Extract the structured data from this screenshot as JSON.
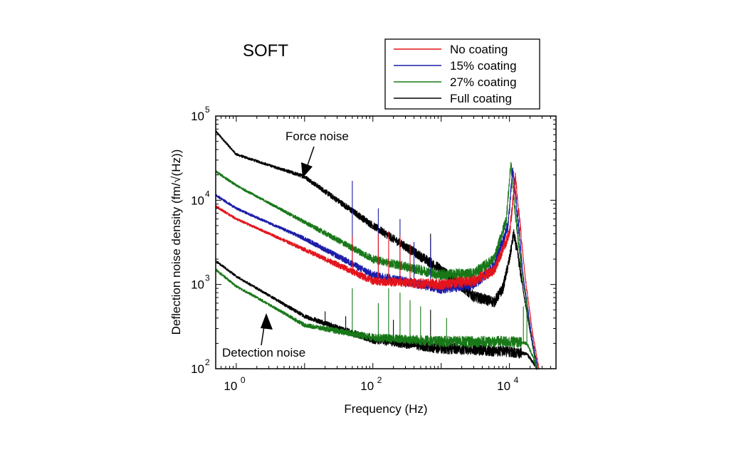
{
  "chart_data": {
    "type": "line",
    "title": "SOFT",
    "xlabel": "Frequency (Hz)",
    "ylabel": "Deflection noise density (fm/√(Hz))",
    "xscale": "log",
    "yscale": "log",
    "xlim": [
      0.5,
      48000
    ],
    "ylim": [
      100,
      100000
    ],
    "x_ticks": [
      {
        "value": 1,
        "base": "10",
        "exp": "0"
      },
      {
        "value": 100,
        "base": "10",
        "exp": "2"
      },
      {
        "value": 10000,
        "base": "10",
        "exp": "4"
      }
    ],
    "y_ticks": [
      {
        "value": 100,
        "base": "10",
        "exp": "2"
      },
      {
        "value": 1000,
        "base": "10",
        "exp": "3"
      },
      {
        "value": 10000,
        "base": "10",
        "exp": "4"
      },
      {
        "value": 100000,
        "base": "10",
        "exp": "5"
      }
    ],
    "grid": false,
    "legend_position": "top-right, above plot",
    "legend": [
      {
        "label": "No coating",
        "color": "#e3141c"
      },
      {
        "label": "15% coating",
        "color": "#1c1caa"
      },
      {
        "label": "27% coating",
        "color": "#187818"
      },
      {
        "label": "Full coating",
        "color": "#000000"
      }
    ],
    "annotations": [
      {
        "text": "Force noise"
      },
      {
        "text": "Detection noise"
      }
    ],
    "series": [
      {
        "name": "Full coating",
        "group": "force",
        "color": "#000000",
        "points": [
          [
            0.5,
            66000
          ],
          [
            1,
            35000
          ],
          [
            10,
            19000
          ],
          [
            100,
            5000
          ],
          [
            1000,
            1500
          ],
          [
            3000,
            720
          ],
          [
            6000,
            620
          ],
          [
            8000,
            900
          ],
          [
            10000,
            2000
          ],
          [
            11500,
            4000
          ],
          [
            13000,
            2500
          ],
          [
            17000,
            600
          ],
          [
            22000,
            180
          ],
          [
            25000,
            100
          ]
        ],
        "spikes": [
          [
            700,
            4000
          ],
          [
            300,
            2500
          ]
        ]
      },
      {
        "name": "27% coating",
        "group": "force",
        "color": "#187818",
        "points": [
          [
            0.5,
            22000
          ],
          [
            1,
            15000
          ],
          [
            10,
            5500
          ],
          [
            100,
            2000
          ],
          [
            1000,
            1300
          ],
          [
            3000,
            1350
          ],
          [
            6000,
            2000
          ],
          [
            9000,
            6000
          ],
          [
            10500,
            28000
          ],
          [
            12000,
            8000
          ],
          [
            15000,
            1500
          ],
          [
            20000,
            300
          ],
          [
            25000,
            100
          ]
        ],
        "spikes": []
      },
      {
        "name": "15% coating",
        "group": "force",
        "color": "#1c1caa",
        "points": [
          [
            0.5,
            11500
          ],
          [
            1,
            8000
          ],
          [
            10,
            3500
          ],
          [
            100,
            1300
          ],
          [
            1000,
            900
          ],
          [
            3000,
            1000
          ],
          [
            6000,
            1600
          ],
          [
            9500,
            5000
          ],
          [
            11200,
            23000
          ],
          [
            13000,
            7000
          ],
          [
            16000,
            1200
          ],
          [
            21000,
            250
          ],
          [
            26000,
            100
          ]
        ],
        "spikes": [
          [
            50,
            17000
          ],
          [
            120,
            8000
          ],
          [
            250,
            6000
          ],
          [
            400,
            3200
          ],
          [
            700,
            3500
          ]
        ]
      },
      {
        "name": "No coating",
        "group": "force",
        "color": "#e3141c",
        "points": [
          [
            0.5,
            8500
          ],
          [
            1,
            6000
          ],
          [
            10,
            2600
          ],
          [
            100,
            1100
          ],
          [
            1000,
            1000
          ],
          [
            3000,
            1100
          ],
          [
            6000,
            1500
          ],
          [
            10000,
            4000
          ],
          [
            12200,
            19000
          ],
          [
            14000,
            6000
          ],
          [
            17000,
            1200
          ],
          [
            22000,
            250
          ],
          [
            27000,
            100
          ]
        ],
        "spikes": [
          [
            50,
            3800
          ],
          [
            120,
            4000
          ],
          [
            170,
            4300
          ],
          [
            250,
            3800
          ],
          [
            350,
            3000
          ]
        ]
      },
      {
        "name": "Full coating",
        "group": "detection",
        "color": "#000000",
        "points": [
          [
            0.5,
            1900
          ],
          [
            1,
            1250
          ],
          [
            2,
            900
          ],
          [
            10,
            420
          ],
          [
            100,
            220
          ],
          [
            1000,
            175
          ],
          [
            10000,
            160
          ],
          [
            18000,
            150
          ],
          [
            22000,
            120
          ],
          [
            25000,
            100
          ]
        ],
        "spikes": [
          [
            9,
            450
          ],
          [
            20,
            480
          ],
          [
            40,
            420
          ],
          [
            200,
            380
          ],
          [
            700,
            500
          ]
        ]
      },
      {
        "name": "27% coating",
        "group": "detection",
        "color": "#187818",
        "points": [
          [
            0.5,
            1500
          ],
          [
            1,
            950
          ],
          [
            2,
            700
          ],
          [
            10,
            330
          ],
          [
            100,
            235
          ],
          [
            1000,
            210
          ],
          [
            10000,
            210
          ],
          [
            18000,
            200
          ],
          [
            22000,
            140
          ],
          [
            25000,
            100
          ]
        ],
        "spikes": [
          [
            50,
            900
          ],
          [
            120,
            600
          ],
          [
            170,
            900
          ],
          [
            250,
            800
          ],
          [
            350,
            650
          ],
          [
            500,
            550
          ],
          [
            1200,
            400
          ],
          [
            18000,
            700
          ],
          [
            16000,
            550
          ]
        ]
      }
    ]
  }
}
